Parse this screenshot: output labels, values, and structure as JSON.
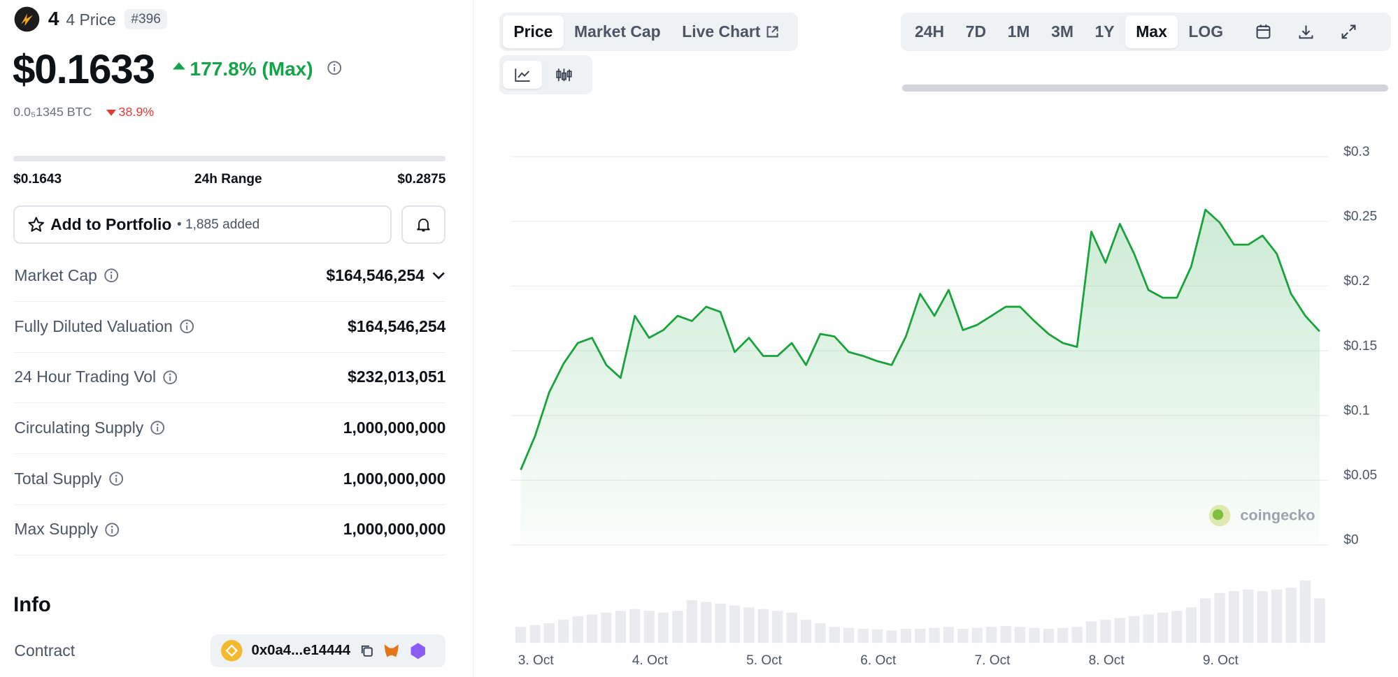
{
  "header": {
    "symbol": "4",
    "name": "4 Price",
    "rank": "#396"
  },
  "price": {
    "value": "$0.1633",
    "change": "177.8% (Max)",
    "btc": "0.0₅1345 BTC",
    "btc_change": "38.9%"
  },
  "range": {
    "low": "$0.1643",
    "label": "24h Range",
    "high": "$0.2875"
  },
  "portfolio": {
    "button": "Add to Portfolio",
    "count": "• 1,885 added"
  },
  "stats": [
    {
      "label": "Market Cap",
      "value": "$164,546,254"
    },
    {
      "label": "Fully Diluted Valuation",
      "value": "$164,546,254"
    },
    {
      "label": "24 Hour Trading Vol",
      "value": "$232,013,051"
    },
    {
      "label": "Circulating Supply",
      "value": "1,000,000,000"
    },
    {
      "label": "Total Supply",
      "value": "1,000,000,000"
    },
    {
      "label": "Max Supply",
      "value": "1,000,000,000"
    }
  ],
  "info": {
    "title": "Info",
    "contract_label": "Contract",
    "contract": "0x0a4...e14444"
  },
  "tabs": [
    "Price",
    "Market Cap",
    "Live Chart"
  ],
  "ranges": [
    "24H",
    "7D",
    "1M",
    "3M",
    "1Y",
    "Max",
    "LOG"
  ],
  "watermark": "coingecko",
  "chart_data": [
    {
      "type": "line",
      "color": "#1aa33c",
      "grid": true,
      "categories": [
        null,
        "3. Oct",
        null,
        null,
        null,
        null,
        null,
        null,
        null,
        "4. Oct",
        null,
        null,
        null,
        null,
        null,
        null,
        null,
        "5. Oct",
        null,
        null,
        null,
        null,
        null,
        null,
        null,
        "6. Oct",
        null,
        null,
        null,
        null,
        null,
        null,
        null,
        "7. Oct",
        null,
        null,
        null,
        null,
        null,
        null,
        null,
        "8. Oct",
        null,
        null,
        null,
        null,
        null,
        null,
        null,
        "9. Oct",
        null,
        null,
        null,
        null,
        null,
        null,
        null
      ],
      "values": [
        0.058,
        0.084,
        0.118,
        0.14,
        0.156,
        0.16,
        0.139,
        0.129,
        0.177,
        0.16,
        0.166,
        0.177,
        0.173,
        0.184,
        0.18,
        0.149,
        0.16,
        0.146,
        0.146,
        0.156,
        0.139,
        0.163,
        0.161,
        0.149,
        0.146,
        0.142,
        0.139,
        0.161,
        0.194,
        0.177,
        0.197,
        0.166,
        0.17,
        0.177,
        0.184,
        0.184,
        0.173,
        0.163,
        0.156,
        0.153,
        0.242,
        0.218,
        0.248,
        0.225,
        0.197,
        0.191,
        0.191,
        0.215,
        0.259,
        0.249,
        0.232,
        0.232,
        0.239,
        0.225,
        0.194,
        0.177,
        0.165
      ],
      "ylim": [
        0,
        0.3
      ],
      "yticks": [
        {
          "value": 0,
          "label": "$0"
        },
        {
          "value": 0.05,
          "label": "$0.05"
        },
        {
          "value": 0.1,
          "label": "$0.1"
        },
        {
          "value": 0.15,
          "label": "$0.15"
        },
        {
          "value": 0.2,
          "label": "$0.2"
        },
        {
          "value": 0.25,
          "label": "$0.25"
        },
        {
          "value": 0.3,
          "label": "$0.3"
        }
      ]
    },
    {
      "type": "bar",
      "color": "#e9ebee",
      "values": [
        18,
        20,
        22,
        26,
        30,
        32,
        34,
        36,
        38,
        36,
        34,
        36,
        48,
        46,
        44,
        42,
        40,
        38,
        36,
        34,
        26,
        22,
        18,
        17,
        16,
        15,
        14,
        16,
        16,
        17,
        18,
        16,
        17,
        18,
        19,
        18,
        17,
        16,
        17,
        18,
        24,
        26,
        28,
        30,
        32,
        34,
        36,
        40,
        50,
        56,
        58,
        60,
        58,
        60,
        62,
        70,
        50
      ]
    }
  ]
}
